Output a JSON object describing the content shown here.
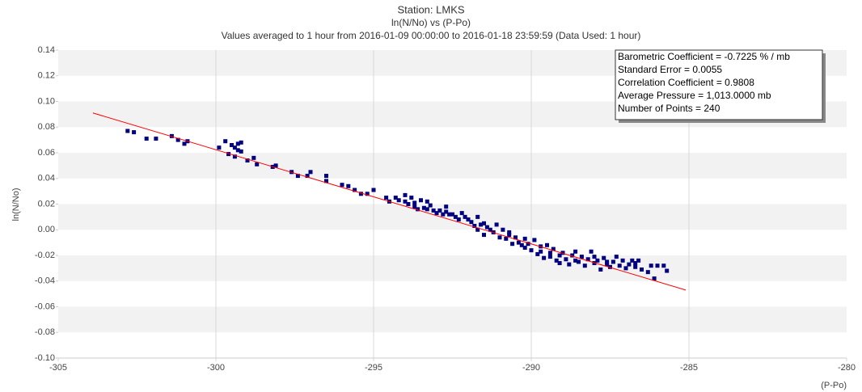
{
  "chart_data": {
    "type": "scatter",
    "title": "Station: LMKS",
    "subtitles": [
      "ln(N/No) vs (P-Po)",
      "Values averaged to 1 hour from 2016-01-09 00:00:00 to 2016-01-18 23:59:59 (Data Used: 1 hour)"
    ],
    "x_label": "(P-Po)",
    "y_label": "ln(N/No)",
    "annotations": [
      "Barometric Coefficient = -0.7225 % / mb",
      "Standard Error = 0.0055",
      "Correlation Coefficient = 0.9808",
      "Average Pressure = 1,013.0000 mb",
      "Number of Points = 240"
    ],
    "xlim": [
      -305,
      -280
    ],
    "xticks": [
      -305,
      -300,
      -295,
      -290,
      -285,
      -280
    ],
    "ylim": [
      -0.1,
      0.14
    ],
    "yticks": [
      {
        "value": -0.1,
        "label": "-0.10"
      },
      -0.08,
      -0.06,
      -0.04,
      -0.02,
      {
        "value": 0,
        "label": "0.00"
      },
      0.02,
      0.04,
      0.06,
      0.08,
      {
        "value": 0.1,
        "label": "0.10"
      },
      0.12,
      0.14
    ],
    "grid": true,
    "series": [
      {
        "color": "#000080",
        "x": [
          -302.8,
          -302.6,
          -302.2,
          -301.9,
          -301.4,
          -301.2,
          -301.0,
          -300.9,
          -299.9,
          -299.7,
          -299.5,
          -299.4,
          -299.3,
          -299.2,
          -299.3,
          -299.2,
          -299.6,
          -299.4,
          -299.0,
          -298.8,
          -298.7,
          -298.2,
          -298.1,
          -297.6,
          -297.4,
          -297.0,
          -297.1,
          -296.5,
          -296.5,
          -296.0,
          -295.8,
          -295.6,
          -295.4,
          -295.2,
          -295.0,
          -294.6,
          -294.5,
          -294.3,
          -294.2,
          -294.0,
          -294.0,
          -293.9,
          -293.8,
          -293.7,
          -293.7,
          -293.6,
          -293.5,
          -293.4,
          -293.3,
          -293.3,
          -293.2,
          -293.1,
          -293.0,
          -292.9,
          -292.8,
          -292.7,
          -292.7,
          -292.6,
          -292.5,
          -292.4,
          -292.3,
          -292.2,
          -292.1,
          -292.0,
          -291.9,
          -291.8,
          -291.7,
          -291.7,
          -291.6,
          -291.5,
          -291.5,
          -291.4,
          -291.3,
          -291.2,
          -291.1,
          -291.0,
          -290.9,
          -290.8,
          -290.7,
          -290.7,
          -290.6,
          -290.5,
          -290.4,
          -290.3,
          -290.2,
          -290.2,
          -290.1,
          -290.0,
          -289.9,
          -289.8,
          -289.7,
          -289.7,
          -289.6,
          -289.5,
          -289.4,
          -289.4,
          -289.3,
          -289.2,
          -289.1,
          -289.1,
          -289.0,
          -288.9,
          -288.8,
          -288.7,
          -288.6,
          -288.6,
          -288.5,
          -288.4,
          -288.3,
          -288.2,
          -288.1,
          -288.0,
          -288.0,
          -287.9,
          -287.8,
          -287.7,
          -287.6,
          -287.6,
          -287.5,
          -287.4,
          -287.3,
          -287.2,
          -287.1,
          -287.0,
          -286.9,
          -286.8,
          -286.7,
          -286.7,
          -286.6,
          -286.5,
          -286.3,
          -286.2,
          -286.1,
          -286.0,
          -285.8,
          -285.7
        ],
        "values": [
          0.077,
          0.076,
          0.071,
          0.071,
          0.073,
          0.07,
          0.067,
          0.069,
          0.064,
          0.069,
          0.066,
          0.064,
          0.067,
          0.068,
          0.062,
          0.061,
          0.059,
          0.057,
          0.054,
          0.056,
          0.051,
          0.049,
          0.05,
          0.045,
          0.042,
          0.045,
          0.042,
          0.038,
          0.042,
          0.035,
          0.034,
          0.031,
          0.028,
          0.028,
          0.031,
          0.025,
          0.022,
          0.025,
          0.023,
          0.027,
          0.022,
          0.02,
          0.025,
          0.018,
          0.021,
          0.016,
          0.023,
          0.017,
          0.016,
          0.022,
          0.019,
          0.015,
          0.013,
          0.015,
          0.012,
          0.018,
          0.014,
          0.012,
          0.012,
          0.01,
          0.008,
          0.013,
          0.01,
          0.008,
          0.006,
          0.003,
          0.01,
          0.0,
          0.004,
          0.005,
          -0.004,
          0.002,
          0.0,
          -0.002,
          0.004,
          -0.006,
          0.0,
          -0.007,
          -0.004,
          -0.002,
          -0.011,
          -0.006,
          -0.01,
          -0.012,
          -0.007,
          -0.014,
          -0.011,
          -0.016,
          -0.008,
          -0.019,
          -0.013,
          -0.017,
          -0.022,
          -0.012,
          -0.018,
          -0.021,
          -0.015,
          -0.024,
          -0.02,
          -0.026,
          -0.018,
          -0.023,
          -0.027,
          -0.02,
          -0.024,
          -0.017,
          -0.025,
          -0.021,
          -0.028,
          -0.023,
          -0.017,
          -0.021,
          -0.026,
          -0.024,
          -0.031,
          -0.022,
          -0.027,
          -0.025,
          -0.029,
          -0.025,
          -0.021,
          -0.028,
          -0.024,
          -0.03,
          -0.027,
          -0.024,
          -0.029,
          -0.026,
          -0.024,
          -0.031,
          -0.033,
          -0.028,
          -0.038,
          -0.028,
          -0.028,
          -0.032
        ]
      }
    ],
    "fit": {
      "color": "#ff0000",
      "x": [
        -303.9,
        -285.1
      ],
      "values": [
        0.091,
        -0.047
      ]
    }
  }
}
